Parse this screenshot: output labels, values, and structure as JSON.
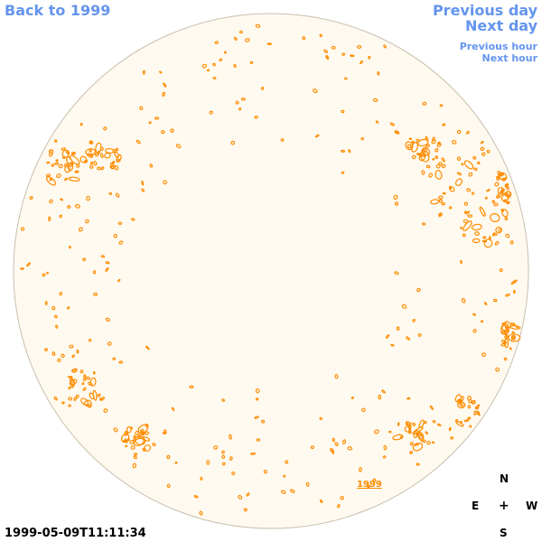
{
  "nav": {
    "back": "Back to 1999",
    "previous_day": "Previous day",
    "next_day": "Next day",
    "previous_hour": "Previous hour",
    "next_hour": "Next hour"
  },
  "year_link": "1999",
  "compass": {
    "north": "N",
    "east": "E",
    "center": "+",
    "west": "W",
    "south": "S"
  },
  "timestamp": "1999-05-09T11:11:34",
  "colors": {
    "disk_fill": "#fffaf0",
    "disk_edge": "#c8bfae",
    "contour": "#ff8c00",
    "link": "#6495ed"
  }
}
